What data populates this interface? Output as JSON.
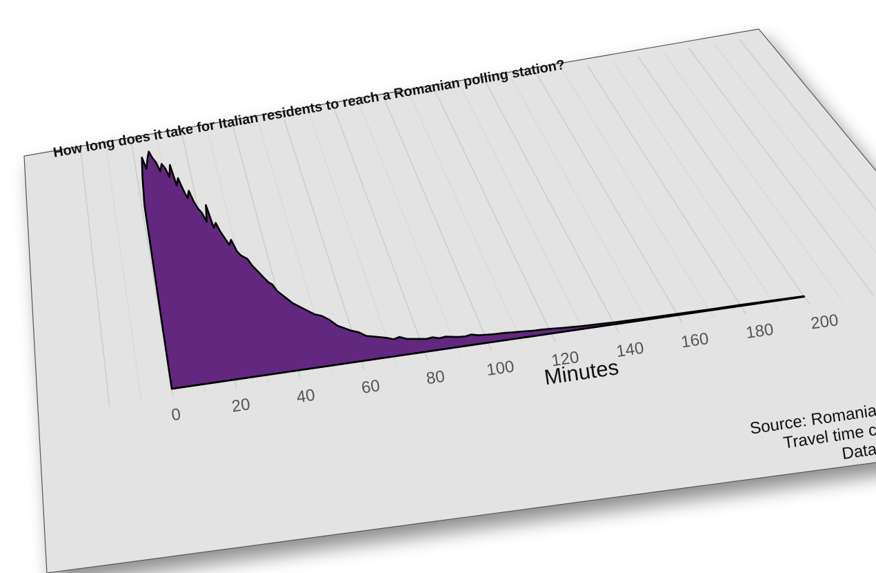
{
  "chart_data": {
    "type": "area",
    "title": "How long does it take for Italian residents to reach a Romanian polling station?",
    "xlabel": "Minutes",
    "ylabel": "",
    "xlim": [
      0,
      200
    ],
    "ylim": [
      0,
      1
    ],
    "x_ticks": [
      "0",
      "20",
      "40",
      "60",
      "80",
      "100",
      "120",
      "140",
      "160",
      "180",
      "200"
    ],
    "grid": true,
    "fill_color": "#62287f",
    "line_color": "#000000",
    "panel_color": "#e3e3e3",
    "source_lines": [
      "Source: Romania",
      "Travel time c",
      "Data"
    ],
    "series": [
      {
        "x": [
          0,
          1,
          2,
          3,
          4,
          5,
          6,
          7,
          8,
          9,
          10,
          11,
          12,
          13,
          14,
          15,
          16,
          17,
          18,
          19,
          20,
          21,
          22,
          23,
          24,
          25,
          26,
          27,
          28,
          29,
          30,
          31,
          32,
          33,
          34,
          35,
          36,
          37,
          38,
          39,
          40,
          42,
          44,
          46,
          48,
          50,
          52,
          54,
          56,
          58,
          60,
          62,
          64,
          66,
          68,
          70,
          72,
          74,
          76,
          78,
          80,
          82,
          84,
          86,
          88,
          90,
          92,
          94,
          96,
          98,
          100,
          103,
          106,
          109,
          112,
          115,
          118,
          121,
          124,
          127,
          130,
          135,
          140,
          145,
          150,
          160,
          170,
          180,
          190,
          200
        ],
        "y": [
          0.0,
          0.78,
          0.9,
          0.98,
          0.93,
          0.97,
          1.0,
          0.97,
          0.95,
          0.91,
          0.94,
          0.92,
          0.88,
          0.93,
          0.84,
          0.87,
          0.82,
          0.78,
          0.81,
          0.76,
          0.73,
          0.71,
          0.67,
          0.74,
          0.64,
          0.66,
          0.62,
          0.59,
          0.56,
          0.58,
          0.53,
          0.51,
          0.5,
          0.49,
          0.46,
          0.44,
          0.42,
          0.4,
          0.38,
          0.37,
          0.34,
          0.31,
          0.28,
          0.26,
          0.24,
          0.22,
          0.21,
          0.19,
          0.16,
          0.145,
          0.13,
          0.12,
          0.1,
          0.094,
          0.087,
          0.08,
          0.07,
          0.076,
          0.064,
          0.06,
          0.056,
          0.052,
          0.055,
          0.047,
          0.05,
          0.045,
          0.041,
          0.039,
          0.043,
          0.036,
          0.034,
          0.031,
          0.03,
          0.027,
          0.025,
          0.022,
          0.021,
          0.019,
          0.016,
          0.014,
          0.012,
          0.01,
          0.008,
          0.007,
          0.006,
          0.005,
          0.004,
          0.004,
          0.003,
          0.002
        ]
      }
    ]
  }
}
